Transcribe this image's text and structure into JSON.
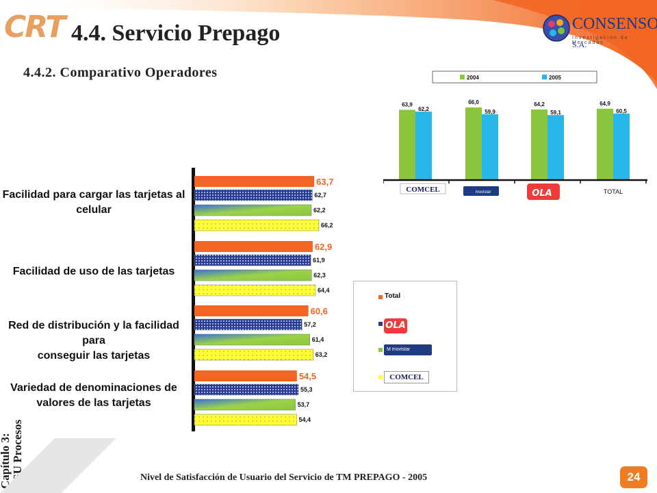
{
  "header": {
    "crt_logo": "CRT",
    "title": "4.4. Servicio Prepago",
    "subtitle": "4.4.2. Comparativo Operadores",
    "consenso_brand": "CONSENSO",
    "consenso_sa": "S.A.",
    "consenso_tag": "Investigación de Mercados"
  },
  "sidebar": {
    "chapter": "Capítulo 3:",
    "section": "NSU Procesos"
  },
  "footer": {
    "text": "Nivel de Satisfacción de Usuario del Servicio de TM PREPAGO - 2005",
    "page_number": "24"
  },
  "colors": {
    "orange": "#f26522",
    "green": "#8cc63f",
    "cyan": "#29b6e8",
    "yellow": "#ffff33",
    "navy": "#2a3a8c"
  },
  "chart_data": [
    {
      "type": "bar",
      "orientation": "horizontal",
      "categories": [
        "Facilidad para cargar las tarjetas al celular",
        "Facilidad de uso de las tarjetas",
        "Red de distribución y la facilidad para conseguir las tarjetas",
        "Variedad de denominaciones de valores de las tarjetas"
      ],
      "category_lines": [
        [
          "Facilidad para cargar las tarjetas al",
          "celular"
        ],
        [
          "Facilidad de uso de las tarjetas"
        ],
        [
          "Red de distribución y la facilidad para",
          "conseguir las tarjetas"
        ],
        [
          "Variedad de denominaciones de",
          "valores de las tarjetas"
        ]
      ],
      "series": [
        {
          "name": "Total",
          "values": [
            63.7,
            62.9,
            60.6,
            54.5
          ],
          "labels": [
            "63,7",
            "62,9",
            "60,6",
            "54,5"
          ]
        },
        {
          "values": [
            62.7,
            61.9,
            57.2,
            55.3
          ],
          "labels": [
            "62,7",
            "61,9",
            "57,2",
            "55,3"
          ]
        },
        {
          "values": [
            62.2,
            62.3,
            61.4,
            53.7
          ],
          "labels": [
            "62,2",
            "62,3",
            "61,4",
            "53,7"
          ]
        },
        {
          "values": [
            66.2,
            64.4,
            63.2,
            54.4
          ],
          "labels": [
            "66,2",
            "64,4",
            "63,2",
            "54,4"
          ]
        }
      ],
      "legend": {
        "total_label": "Total",
        "entries": [
          {
            "series": 0,
            "label": "Total",
            "color": "#f26522"
          },
          {
            "series": 1,
            "logo": "OLA",
            "color": "#2a3a8c"
          },
          {
            "series": 2,
            "logo": "movistar",
            "color": "#8cc63f"
          },
          {
            "series": 3,
            "logo": "COMCEL",
            "color": "#ffff33"
          }
        ],
        "placement": "right"
      },
      "grid": false
    },
    {
      "type": "bar",
      "categories": [
        "COMCEL",
        "movistar",
        "OLA",
        "TOTAL"
      ],
      "series": [
        {
          "name": "2004",
          "values": [
            63.9,
            66.0,
            64.2,
            64.9
          ],
          "labels": [
            "63,9",
            "66,0",
            "64,2",
            "64,9"
          ],
          "color": "#8cc63f"
        },
        {
          "name": "2005",
          "values": [
            62.2,
            59.9,
            59.1,
            60.5
          ],
          "labels": [
            "62,2",
            "59,9",
            "59,1",
            "60,5"
          ],
          "color": "#29b6e8"
        }
      ],
      "legend": {
        "placement": "top"
      },
      "grid": false
    }
  ]
}
